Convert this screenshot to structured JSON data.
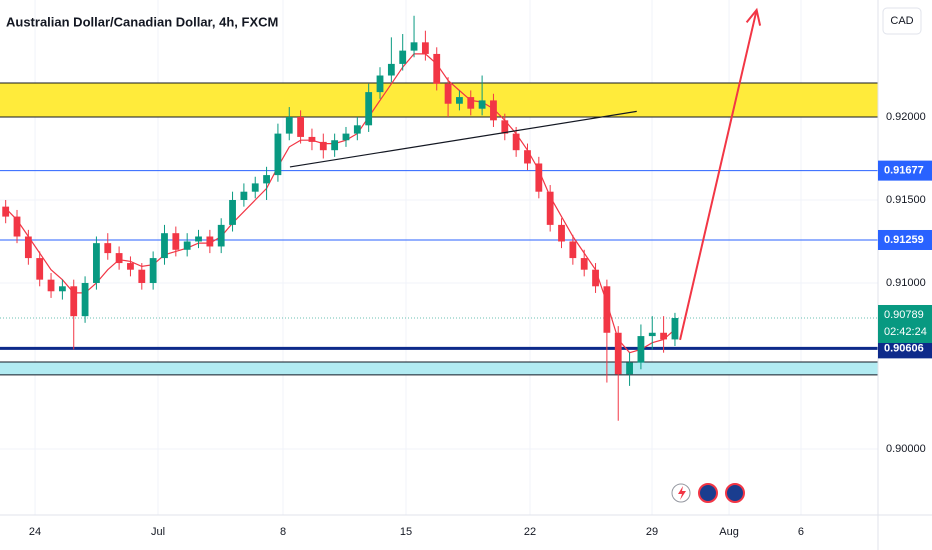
{
  "chart_data": {
    "type": "candlestick",
    "title": "Australian Dollar/Canadian Dollar, 4h, FXCM",
    "currency": "CAD",
    "up_color": "#089981",
    "down_color": "#f23645",
    "open": [
      0.9146,
      0.914,
      0.9128,
      0.9115,
      0.9102,
      0.9095,
      0.9098,
      0.908,
      0.91,
      0.9124,
      0.9118,
      0.9112,
      0.9108,
      0.91,
      0.9115,
      0.913,
      0.912,
      0.9125,
      0.9128,
      0.9122,
      0.9135,
      0.915,
      0.9155,
      0.916,
      0.9165,
      0.919,
      0.92,
      0.9188,
      0.9185,
      0.918,
      0.9186,
      0.919,
      0.9195,
      0.9215,
      0.9225,
      0.9232,
      0.924,
      0.9245,
      0.9238,
      0.922,
      0.9208,
      0.9212,
      0.9205,
      0.921,
      0.9198,
      0.919,
      0.918,
      0.9172,
      0.9155,
      0.9135,
      0.9125,
      0.9115,
      0.9108,
      0.9098,
      0.907,
      0.9045,
      0.9052,
      0.9068,
      0.907,
      0.9066
    ],
    "high": [
      0.915,
      0.9144,
      0.9132,
      0.9119,
      0.9106,
      0.9102,
      0.9102,
      0.9104,
      0.9128,
      0.913,
      0.9122,
      0.9116,
      0.9112,
      0.9119,
      0.9135,
      0.9134,
      0.913,
      0.9132,
      0.9132,
      0.9139,
      0.9155,
      0.916,
      0.9164,
      0.917,
      0.9196,
      0.9206,
      0.9204,
      0.9193,
      0.919,
      0.919,
      0.9194,
      0.92,
      0.922,
      0.923,
      0.9248,
      0.925,
      0.9261,
      0.9252,
      0.9242,
      0.9224,
      0.9216,
      0.9216,
      0.9225,
      0.9214,
      0.9202,
      0.9194,
      0.9184,
      0.9176,
      0.9159,
      0.9139,
      0.9129,
      0.912,
      0.9112,
      0.9102,
      0.9074,
      0.9058,
      0.9075,
      0.908,
      0.908,
      0.9082
    ],
    "low": [
      0.9136,
      0.9124,
      0.9111,
      0.9098,
      0.9091,
      0.909,
      0.906,
      0.9076,
      0.9096,
      0.9114,
      0.9108,
      0.9104,
      0.9096,
      0.9096,
      0.9111,
      0.9116,
      0.9116,
      0.9121,
      0.9118,
      0.9118,
      0.9131,
      0.9146,
      0.9151,
      0.915,
      0.9161,
      0.9186,
      0.9184,
      0.918,
      0.9175,
      0.9176,
      0.9182,
      0.9186,
      0.9191,
      0.9211,
      0.9221,
      0.9228,
      0.9236,
      0.9234,
      0.9216,
      0.92,
      0.9204,
      0.9201,
      0.9201,
      0.9194,
      0.9186,
      0.9176,
      0.9168,
      0.9151,
      0.9131,
      0.9121,
      0.9111,
      0.9104,
      0.9094,
      0.904,
      0.9017,
      0.9038,
      0.9048,
      0.906,
      0.9058,
      0.9062
    ],
    "close": [
      0.914,
      0.9128,
      0.9115,
      0.9102,
      0.9095,
      0.9098,
      0.908,
      0.91,
      0.9124,
      0.9118,
      0.9112,
      0.9108,
      0.91,
      0.9115,
      0.913,
      0.912,
      0.9125,
      0.9128,
      0.9122,
      0.9135,
      0.915,
      0.9155,
      0.916,
      0.9165,
      0.919,
      0.92,
      0.9188,
      0.9185,
      0.918,
      0.9186,
      0.919,
      0.9195,
      0.9215,
      0.9225,
      0.9232,
      0.924,
      0.9245,
      0.9238,
      0.922,
      0.9208,
      0.9212,
      0.9205,
      0.921,
      0.9198,
      0.919,
      0.918,
      0.9172,
      0.9155,
      0.9135,
      0.9125,
      0.9115,
      0.9108,
      0.9098,
      0.907,
      0.9045,
      0.9052,
      0.9068,
      0.907,
      0.9066,
      0.90789
    ],
    "moving_average": {
      "color": "#f23645",
      "values": [
        0.9145,
        0.9138,
        0.9128,
        0.9118,
        0.9108,
        0.9102,
        0.9094,
        0.9094,
        0.91,
        0.9108,
        0.9114,
        0.9113,
        0.911,
        0.9111,
        0.9117,
        0.9119,
        0.9121,
        0.9124,
        0.9124,
        0.9128,
        0.9136,
        0.9143,
        0.915,
        0.9157,
        0.917,
        0.9182,
        0.9186,
        0.9186,
        0.9184,
        0.9184,
        0.9186,
        0.919,
        0.92,
        0.921,
        0.922,
        0.923,
        0.9238,
        0.9238,
        0.9232,
        0.9222,
        0.9216,
        0.921,
        0.9209,
        0.9205,
        0.9198,
        0.919,
        0.918,
        0.9168,
        0.9152,
        0.914,
        0.9128,
        0.9118,
        0.9108,
        0.9088,
        0.9066,
        0.9058,
        0.906,
        0.9064,
        0.9066,
        0.9072
      ]
    },
    "xlim": [
      0,
      77.4
    ],
    "xticks": [
      {
        "value": 3.09,
        "label": "24"
      },
      {
        "value": 13.93,
        "label": "Jul"
      },
      {
        "value": 24.95,
        "label": "8"
      },
      {
        "value": 35.79,
        "label": "15"
      },
      {
        "value": 46.72,
        "label": "22"
      },
      {
        "value": 57.48,
        "label": "29"
      },
      {
        "value": 64.27,
        "label": "Aug"
      },
      {
        "value": 70.61,
        "label": "6"
      }
    ],
    "ylim": [
      0.89602,
      0.92705
    ],
    "yticks": [
      {
        "value": 0.92,
        "label": "0.92000"
      },
      {
        "value": 0.915,
        "label": "0.91500"
      },
      {
        "value": 0.91,
        "label": "0.91000"
      },
      {
        "value": 0.9,
        "label": "0.90000"
      }
    ],
    "zones": [
      {
        "from": 0.92,
        "to": 0.92205,
        "color": "#ffeb3b"
      },
      {
        "from": 0.90446,
        "to": 0.90524,
        "color": "#b2ebf2"
      }
    ],
    "price_lines": [
      {
        "value": 0.91677,
        "color": "#2962ff",
        "width": 1
      },
      {
        "value": 0.91259,
        "color": "#2962ff",
        "width": 1
      },
      {
        "value": 0.90606,
        "color": "#0d2a8a",
        "width": 3
      }
    ],
    "trendline": {
      "color": "#131722",
      "x": [
        25.56,
        56.13
      ],
      "y": [
        0.91699,
        0.92034
      ]
    },
    "arrow": {
      "color": "#f23645",
      "x": [
        59.95,
        66.7
      ],
      "y": [
        0.90657,
        0.92645
      ]
    },
    "last_price": {
      "value": 0.90789,
      "countdown": "02:42:24",
      "color": "#089981"
    }
  }
}
